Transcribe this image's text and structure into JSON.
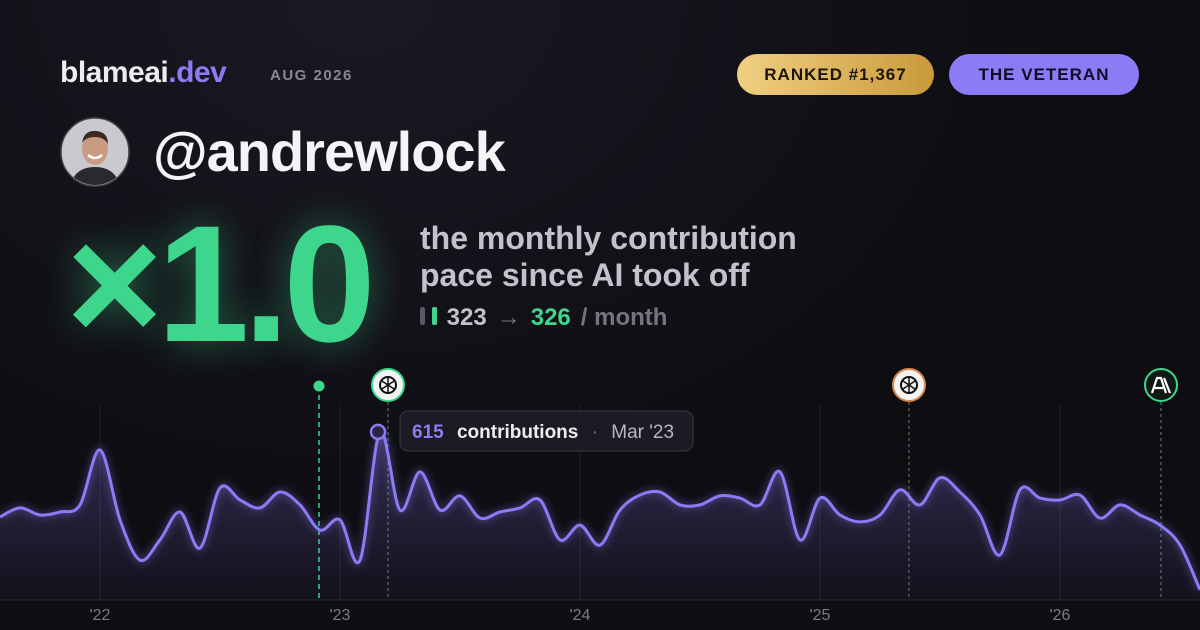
{
  "header": {
    "brand": "blameai",
    "brand_suffix": ".dev",
    "period": "AUG 2026",
    "rank_badge": "RANKED #1,367",
    "title_badge": "THE VETERAN"
  },
  "user": {
    "handle": "@andrewlock"
  },
  "headline": {
    "multiplier": "×1.0",
    "line1": "the monthly contribution",
    "line2": "pace since AI took off"
  },
  "pace": {
    "before": 323,
    "arrow": "→",
    "after": 326,
    "unit": "/ month"
  },
  "tooltip": {
    "label": "contributions",
    "separator": "·",
    "date": "Mar '23"
  },
  "chart_data": {
    "type": "area",
    "categories": [
      null,
      null,
      null,
      null,
      null,
      "'22",
      null,
      null,
      null,
      null,
      null,
      null,
      null,
      null,
      null,
      null,
      null,
      "'23",
      null,
      null,
      null,
      null,
      null,
      null,
      null,
      null,
      null,
      null,
      null,
      "'24",
      null,
      null,
      null,
      null,
      null,
      null,
      null,
      null,
      null,
      null,
      null,
      "'25",
      null,
      null,
      null,
      null,
      null,
      null,
      null,
      null,
      null,
      null,
      null,
      "'26",
      null,
      null,
      null,
      null,
      null,
      null,
      null
    ],
    "series": [
      {
        "name": "contributions",
        "color": "#8b7cf6",
        "values": [
          304,
          337,
          311,
          322,
          348,
          549,
          293,
          146,
          220,
          322,
          190,
          410,
          366,
          337,
          395,
          348,
          256,
          293,
          146,
          615,
          329,
          469,
          329,
          381,
          300,
          322,
          337,
          366,
          220,
          274,
          201,
          329,
          384,
          395,
          348,
          348,
          381,
          373,
          348,
          469,
          220,
          373,
          311,
          286,
          311,
          403,
          348,
          447,
          395,
          311,
          165,
          403,
          373,
          366,
          384,
          300,
          348,
          311,
          274,
          201,
          37
        ]
      }
    ],
    "ylim": [
      0,
      805
    ],
    "highlight_index": 19
  }
}
